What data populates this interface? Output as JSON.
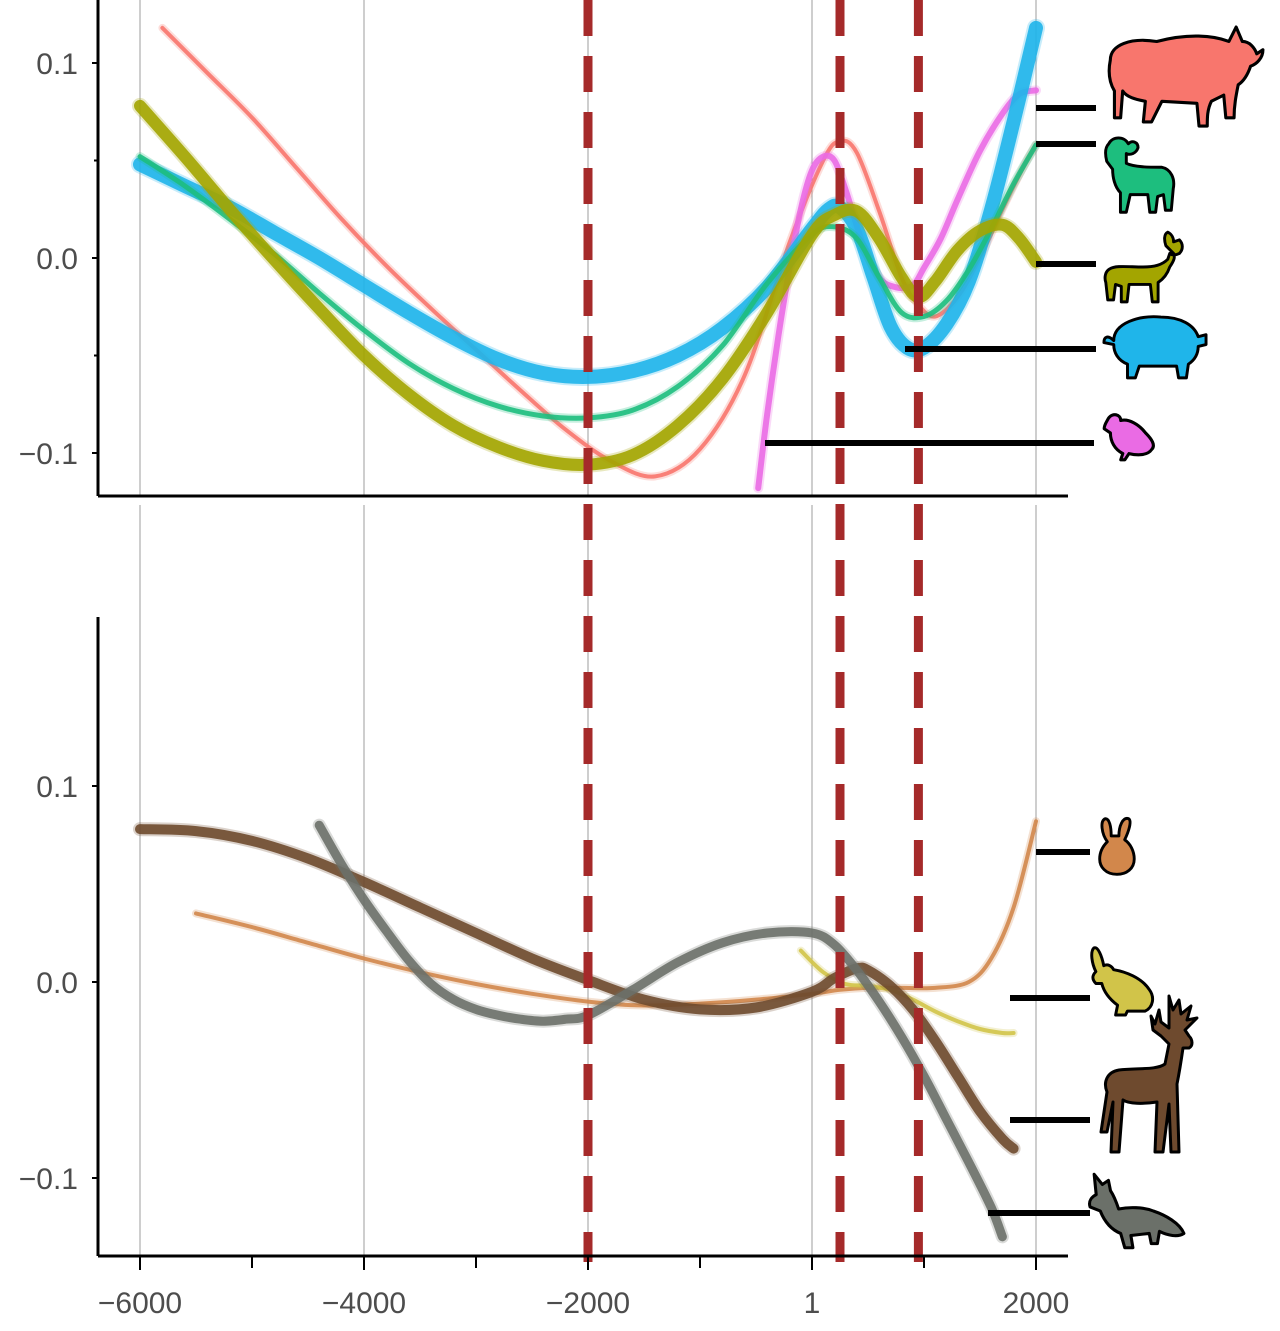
{
  "colors": {
    "divider": "#a52a2a",
    "axis": "#000000",
    "grid": "#9e9e9e",
    "tick_text": "#4d4d4d"
  },
  "chart_data": [
    {
      "type": "line",
      "panel": "top",
      "xlim": [
        -6000,
        2000
      ],
      "ylim": [
        -0.12,
        0.13
      ],
      "y_ticks": [
        {
          "value": 0.1,
          "label": "0.1"
        },
        {
          "value": 0.0,
          "label": "0.0"
        },
        {
          "value": -0.1,
          "label": "−0.1"
        }
      ],
      "vertical_markers": [
        -2000,
        250,
        950
      ],
      "series": [
        {
          "color": "#f8766d",
          "icon": "cattle-icon",
          "width": 4,
          "x": [
            -5800,
            -5400,
            -5000,
            -4600,
            -4200,
            -3800,
            -3400,
            -3000,
            -2600,
            -2200,
            -1800,
            -1400,
            -1000,
            -600,
            -200,
            100,
            250,
            400,
            600,
            800,
            950,
            1100,
            1300,
            1500,
            1700,
            1900,
            2000
          ],
          "y": [
            0.118,
            0.095,
            0.072,
            0.046,
            0.02,
            -0.004,
            -0.026,
            -0.047,
            -0.068,
            -0.088,
            -0.104,
            -0.112,
            -0.098,
            -0.06,
            0.008,
            0.05,
            0.06,
            0.054,
            0.024,
            -0.01,
            -0.024,
            -0.03,
            -0.02,
            0.0,
            0.025,
            0.048,
            0.058
          ]
        },
        {
          "color": "#ea6be4",
          "icon": "chicken-icon",
          "width": 6,
          "x": [
            -480,
            -400,
            -300,
            -200,
            -100,
            0,
            100,
            200,
            300,
            450,
            600,
            750,
            900,
            1000,
            1150,
            1300,
            1500,
            1700,
            1850,
            2000
          ],
          "y": [
            -0.118,
            -0.08,
            -0.04,
            -0.005,
            0.025,
            0.045,
            0.052,
            0.05,
            0.035,
            0.008,
            -0.01,
            -0.015,
            -0.014,
            -0.005,
            0.01,
            0.03,
            0.055,
            0.074,
            0.084,
            0.086
          ]
        },
        {
          "color": "#1fb5ea",
          "icon": "pig-icon",
          "width": 14,
          "x": [
            -6000,
            -5600,
            -5200,
            -4800,
            -4400,
            -4000,
            -3600,
            -3200,
            -2800,
            -2400,
            -2000,
            -1600,
            -1200,
            -800,
            -400,
            0,
            150,
            250,
            400,
            550,
            700,
            850,
            1000,
            1200,
            1400,
            1600,
            1800,
            2000
          ],
          "y": [
            0.048,
            0.037,
            0.026,
            0.013,
            0.0,
            -0.014,
            -0.028,
            -0.041,
            -0.052,
            -0.059,
            -0.061,
            -0.058,
            -0.05,
            -0.036,
            -0.015,
            0.015,
            0.025,
            0.026,
            0.015,
            -0.01,
            -0.035,
            -0.046,
            -0.046,
            -0.034,
            -0.012,
            0.025,
            0.07,
            0.118
          ]
        },
        {
          "color": "#1dbe7e",
          "icon": "sheep-icon",
          "width": 5,
          "x": [
            -6000,
            -5600,
            -5200,
            -4800,
            -4400,
            -4000,
            -3600,
            -3200,
            -2800,
            -2400,
            -2000,
            -1600,
            -1200,
            -800,
            -400,
            0,
            200,
            400,
            600,
            800,
            1000,
            1200,
            1400,
            1600,
            1800,
            2000
          ],
          "y": [
            0.052,
            0.037,
            0.02,
            0.002,
            -0.018,
            -0.037,
            -0.054,
            -0.067,
            -0.076,
            -0.081,
            -0.082,
            -0.078,
            -0.066,
            -0.045,
            -0.013,
            0.012,
            0.016,
            0.01,
            -0.01,
            -0.028,
            -0.03,
            -0.022,
            -0.006,
            0.015,
            0.038,
            0.058
          ]
        },
        {
          "color": "#a3a500",
          "icon": "goat-icon",
          "width": 12,
          "x": [
            -6000,
            -5600,
            -5200,
            -4800,
            -4400,
            -4000,
            -3600,
            -3200,
            -2800,
            -2400,
            -2000,
            -1600,
            -1200,
            -800,
            -400,
            0,
            200,
            400,
            600,
            800,
            950,
            1100,
            1300,
            1500,
            1700,
            1850,
            2000
          ],
          "y": [
            0.078,
            0.052,
            0.025,
            -0.001,
            -0.026,
            -0.05,
            -0.07,
            -0.086,
            -0.097,
            -0.104,
            -0.106,
            -0.101,
            -0.086,
            -0.062,
            -0.028,
            0.012,
            0.022,
            0.024,
            0.01,
            -0.01,
            -0.02,
            -0.012,
            0.004,
            0.014,
            0.017,
            0.01,
            -0.002
          ]
        }
      ]
    },
    {
      "type": "line",
      "panel": "bottom",
      "xlim": [
        -6000,
        2000
      ],
      "ylim": [
        -0.135,
        0.185
      ],
      "x_ticks": [
        {
          "value": -6000,
          "label": "−6000"
        },
        {
          "value": -4000,
          "label": "−4000"
        },
        {
          "value": -2000,
          "label": "−2000"
        },
        {
          "value": 1,
          "label": "1"
        },
        {
          "value": 2000,
          "label": "2000"
        }
      ],
      "y_ticks": [
        {
          "value": 0.1,
          "label": "0.1"
        },
        {
          "value": 0.0,
          "label": "0.0"
        },
        {
          "value": -0.1,
          "label": "−0.1"
        }
      ],
      "vertical_markers": [
        -2000,
        250,
        950
      ],
      "series": [
        {
          "color": "#d2874b",
          "icon": "rabbit-icon",
          "width": 4,
          "x": [
            -5500,
            -5000,
            -4500,
            -4000,
            -3500,
            -3000,
            -2500,
            -2000,
            -1500,
            -1000,
            -500,
            0,
            250,
            500,
            800,
            1100,
            1400,
            1600,
            1800,
            2000
          ],
          "y": [
            0.035,
            0.028,
            0.02,
            0.012,
            0.005,
            -0.001,
            -0.006,
            -0.01,
            -0.012,
            -0.011,
            -0.009,
            -0.006,
            -0.004,
            -0.003,
            -0.003,
            -0.003,
            0.0,
            0.012,
            0.038,
            0.082
          ]
        },
        {
          "color": "#d1c449",
          "icon": "hare-icon",
          "width": 4,
          "x": [
            -100,
            100,
            300,
            500,
            700,
            900,
            1100,
            1300,
            1500,
            1700,
            1800
          ],
          "y": [
            0.016,
            0.005,
            -0.001,
            -0.002,
            -0.004,
            -0.009,
            -0.015,
            -0.02,
            -0.024,
            -0.026,
            -0.026
          ]
        },
        {
          "color": "#6e4a2e",
          "icon": "deer-icon",
          "width": 10,
          "x": [
            -6000,
            -5500,
            -5000,
            -4500,
            -4000,
            -3500,
            -3000,
            -2500,
            -2000,
            -1500,
            -1000,
            -500,
            0,
            200,
            400,
            500,
            700,
            900,
            1100,
            1300,
            1500,
            1700,
            1800
          ],
          "y": [
            0.078,
            0.077,
            0.072,
            0.063,
            0.051,
            0.038,
            0.025,
            0.012,
            0.001,
            -0.009,
            -0.014,
            -0.013,
            -0.005,
            0.002,
            0.007,
            0.006,
            -0.002,
            -0.014,
            -0.03,
            -0.048,
            -0.066,
            -0.08,
            -0.085
          ]
        },
        {
          "color": "#6b7069",
          "icon": "fox-icon",
          "width": 9,
          "x": [
            -4400,
            -4200,
            -4000,
            -3800,
            -3600,
            -3400,
            -3200,
            -3000,
            -2800,
            -2600,
            -2400,
            -2200,
            -2000,
            -1600,
            -1200,
            -800,
            -400,
            0,
            200,
            400,
            600,
            800,
            1000,
            1200,
            1400,
            1600,
            1700
          ],
          "y": [
            0.08,
            0.06,
            0.042,
            0.026,
            0.011,
            -0.001,
            -0.009,
            -0.014,
            -0.017,
            -0.019,
            -0.02,
            -0.019,
            -0.017,
            -0.004,
            0.01,
            0.02,
            0.025,
            0.025,
            0.019,
            0.006,
            -0.01,
            -0.028,
            -0.048,
            -0.07,
            -0.092,
            -0.115,
            -0.13
          ]
        }
      ]
    }
  ]
}
